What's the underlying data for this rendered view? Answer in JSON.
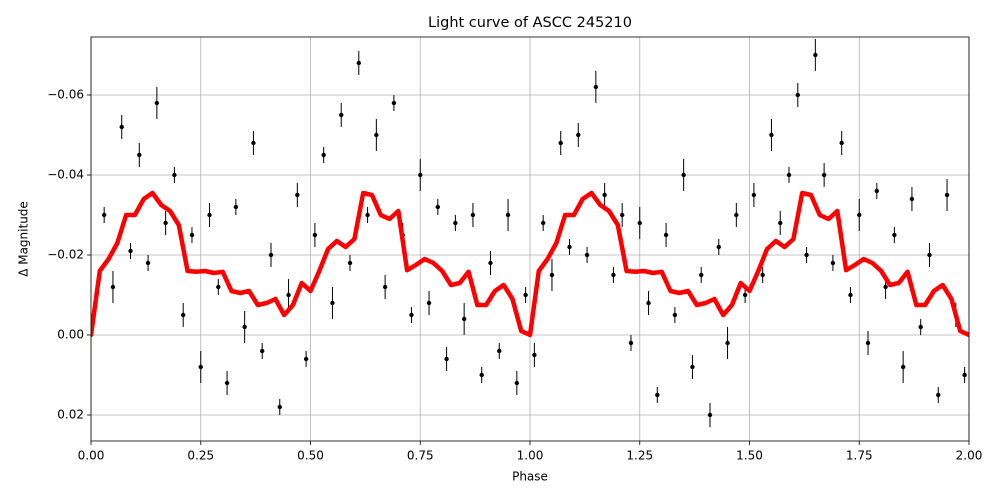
{
  "chart_data": {
    "type": "scatter",
    "title": "Light curve of ASCC 245210",
    "xlabel": "Phase",
    "ylabel": "Δ Magnitude",
    "xlim": [
      0,
      2
    ],
    "ylim": [
      -0.0745,
      0.0265
    ],
    "y_inverted": true,
    "grid": true,
    "xticks": [
      {
        "value": 0,
        "label": "0.00"
      },
      0.25,
      {
        "value": 0.5,
        "label": "0.50"
      },
      0.75,
      {
        "value": 1,
        "label": "1.00"
      },
      1.25,
      {
        "value": 1.5,
        "label": "1.50"
      },
      1.75,
      {
        "value": 2,
        "label": "2.00"
      }
    ],
    "yticks": [
      {
        "value": -0.06,
        "label": "−0.06"
      },
      {
        "value": -0.04,
        "label": "−0.04"
      },
      {
        "value": -0.02,
        "label": "−0.02"
      },
      {
        "value": 0,
        "label": "0.00"
      },
      0.02
    ],
    "series": [
      {
        "mode": "errorbar",
        "color": "#000000",
        "x": [
          0.01,
          0.03,
          0.05,
          0.07,
          0.09,
          0.11,
          0.13,
          0.15,
          0.17,
          0.19,
          0.21,
          0.23,
          0.25,
          0.27,
          0.29,
          0.31,
          0.33,
          0.35,
          0.37,
          0.39,
          0.41,
          0.43,
          0.45,
          0.47,
          0.49,
          0.51,
          0.53,
          0.55,
          0.57,
          0.59,
          0.61,
          0.63,
          0.65,
          0.67,
          0.69,
          0.71,
          0.73,
          0.75,
          0.77,
          0.79,
          0.81,
          0.83,
          0.85,
          0.87,
          0.89,
          0.91,
          0.93,
          0.95,
          0.97,
          0.99,
          1.01,
          1.03,
          1.05,
          1.07,
          1.09,
          1.11,
          1.13,
          1.15,
          1.17,
          1.19,
          1.21,
          1.23,
          1.25,
          1.27,
          1.29,
          1.31,
          1.33,
          1.35,
          1.37,
          1.39,
          1.41,
          1.43,
          1.45,
          1.47,
          1.49,
          1.51,
          1.53,
          1.55,
          1.57,
          1.59,
          1.61,
          1.63,
          1.65,
          1.67,
          1.69,
          1.71,
          1.73,
          1.75,
          1.77,
          1.79,
          1.81,
          1.83,
          1.85,
          1.87,
          1.89,
          1.91,
          1.93,
          1.95,
          1.97,
          1.99
        ],
        "values": [
          -0.008,
          -0.03,
          -0.012,
          -0.052,
          -0.021,
          -0.045,
          -0.018,
          -0.058,
          -0.028,
          -0.04,
          -0.005,
          -0.025,
          0.008,
          -0.03,
          -0.012,
          0.012,
          -0.032,
          -0.002,
          -0.048,
          0.004,
          -0.02,
          0.018,
          -0.01,
          -0.035,
          0.006,
          -0.025,
          -0.045,
          -0.008,
          -0.055,
          -0.018,
          -0.068,
          -0.03,
          -0.05,
          -0.012,
          -0.058,
          -0.025,
          -0.005,
          -0.04,
          -0.008,
          -0.032,
          0.006,
          -0.028,
          -0.004,
          -0.03,
          0.01,
          -0.018,
          0.004,
          -0.03,
          0.012,
          -0.01,
          0.005,
          -0.028,
          -0.015,
          -0.048,
          -0.022,
          -0.05,
          -0.02,
          -0.062,
          -0.035,
          -0.015,
          -0.03,
          0.002,
          -0.028,
          -0.008,
          0.015,
          -0.025,
          -0.005,
          -0.04,
          0.008,
          -0.015,
          0.02,
          -0.022,
          0.002,
          -0.03,
          -0.01,
          -0.035,
          -0.015,
          -0.05,
          -0.028,
          -0.04,
          -0.06,
          -0.02,
          -0.07,
          -0.04,
          -0.018,
          -0.048,
          -0.01,
          -0.03,
          0.002,
          -0.036,
          -0.012,
          -0.025,
          0.008,
          -0.034,
          -0.002,
          -0.02,
          0.015,
          -0.035,
          -0.005,
          0.01
        ],
        "errors": [
          0.003,
          0.002,
          0.004,
          0.003,
          0.002,
          0.003,
          0.002,
          0.004,
          0.003,
          0.002,
          0.003,
          0.002,
          0.004,
          0.003,
          0.002,
          0.003,
          0.002,
          0.004,
          0.003,
          0.002,
          0.003,
          0.002,
          0.004,
          0.003,
          0.002,
          0.003,
          0.002,
          0.004,
          0.003,
          0.002,
          0.003,
          0.002,
          0.004,
          0.003,
          0.002,
          0.003,
          0.002,
          0.004,
          0.003,
          0.002,
          0.003,
          0.002,
          0.004,
          0.003,
          0.002,
          0.003,
          0.002,
          0.004,
          0.003,
          0.002,
          0.003,
          0.002,
          0.004,
          0.003,
          0.002,
          0.003,
          0.002,
          0.004,
          0.003,
          0.002,
          0.003,
          0.002,
          0.004,
          0.003,
          0.002,
          0.003,
          0.002,
          0.004,
          0.003,
          0.002,
          0.003,
          0.002,
          0.004,
          0.003,
          0.002,
          0.003,
          0.002,
          0.004,
          0.003,
          0.002,
          0.003,
          0.002,
          0.004,
          0.003,
          0.002,
          0.003,
          0.002,
          0.004,
          0.003,
          0.002,
          0.003,
          0.002,
          0.004,
          0.003,
          0.002,
          0.003,
          0.002,
          0.004,
          0.003,
          0.002
        ]
      },
      {
        "mode": "line",
        "color": "#ff0000",
        "x": [
          0,
          0.02,
          0.04,
          0.06,
          0.08,
          0.1,
          0.12,
          0.14,
          0.16,
          0.18,
          0.2,
          0.22,
          0.24,
          0.26,
          0.28,
          0.3,
          0.32,
          0.34,
          0.36,
          0.38,
          0.4,
          0.42,
          0.44,
          0.46,
          0.48,
          0.5,
          0.52,
          0.54,
          0.56,
          0.58,
          0.6,
          0.62,
          0.64,
          0.66,
          0.68,
          0.7,
          0.72,
          0.74,
          0.76,
          0.78,
          0.8,
          0.82,
          0.84,
          0.86,
          0.88,
          0.9,
          0.92,
          0.94,
          0.96,
          0.98,
          1,
          1.02,
          1.04,
          1.06,
          1.08,
          1.1,
          1.12,
          1.14,
          1.16,
          1.18,
          1.2,
          1.22,
          1.24,
          1.26,
          1.28,
          1.3,
          1.32,
          1.34,
          1.36,
          1.38,
          1.4,
          1.42,
          1.44,
          1.46,
          1.48,
          1.5,
          1.52,
          1.54,
          1.56,
          1.58,
          1.6,
          1.62,
          1.64,
          1.66,
          1.68,
          1.7,
          1.72,
          1.74,
          1.76,
          1.78,
          1.8,
          1.82,
          1.84,
          1.86,
          1.88,
          1.9,
          1.92,
          1.94,
          1.96,
          1.98,
          2
        ],
        "values": [
          0,
          -0.016,
          -0.019,
          -0.023,
          -0.03,
          -0.03,
          -0.034,
          -0.0355,
          -0.0325,
          -0.031,
          -0.0275,
          -0.016,
          -0.0158,
          -0.016,
          -0.0155,
          -0.0158,
          -0.011,
          -0.0105,
          -0.011,
          -0.0075,
          -0.008,
          -0.009,
          -0.005,
          -0.0075,
          -0.013,
          -0.011,
          -0.016,
          -0.0215,
          -0.0235,
          -0.022,
          -0.024,
          -0.0355,
          -0.035,
          -0.03,
          -0.029,
          -0.031,
          -0.0162,
          -0.0175,
          -0.019,
          -0.018,
          -0.016,
          -0.0125,
          -0.013,
          -0.0158,
          -0.0075,
          -0.0075,
          -0.011,
          -0.0125,
          -0.009,
          -0.001,
          0,
          -0.016,
          -0.019,
          -0.023,
          -0.03,
          -0.03,
          -0.034,
          -0.0355,
          -0.0325,
          -0.031,
          -0.0275,
          -0.016,
          -0.0158,
          -0.016,
          -0.0155,
          -0.0158,
          -0.011,
          -0.0105,
          -0.011,
          -0.0075,
          -0.008,
          -0.009,
          -0.005,
          -0.0075,
          -0.013,
          -0.011,
          -0.016,
          -0.0215,
          -0.0235,
          -0.022,
          -0.024,
          -0.0355,
          -0.035,
          -0.03,
          -0.029,
          -0.031,
          -0.0162,
          -0.0175,
          -0.019,
          -0.018,
          -0.016,
          -0.0125,
          -0.013,
          -0.0158,
          -0.0075,
          -0.0075,
          -0.011,
          -0.0125,
          -0.009,
          -0.001,
          0
        ]
      }
    ]
  }
}
